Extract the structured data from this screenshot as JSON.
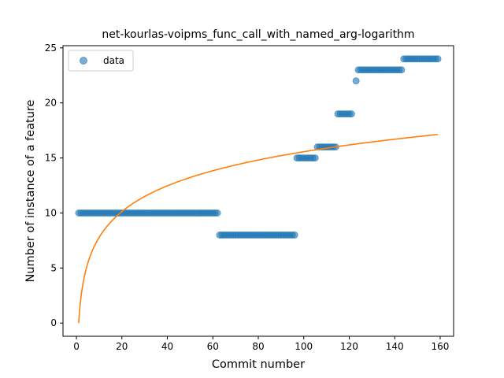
{
  "chart_data": {
    "type": "scatter",
    "title": "net-kourlas-voipms_func_call_with_named_arg-logarithm",
    "xlabel": "Commit number",
    "ylabel": "Number of instance of a feature",
    "xlim": [
      -5.9,
      165.9
    ],
    "ylim": [
      -1.2,
      25.2
    ],
    "xticks": [
      0,
      20,
      40,
      60,
      80,
      100,
      120,
      140,
      160
    ],
    "yticks": [
      0,
      5,
      10,
      15,
      20,
      25
    ],
    "legend": {
      "position": "top-left",
      "entries": [
        "data"
      ]
    },
    "colors": {
      "data": "#1f77b4",
      "fit": "#ff7f0e"
    },
    "series": [
      {
        "name": "data",
        "kind": "scatter",
        "segments": [
          {
            "x_start": 1,
            "x_end": 62,
            "y": 10
          },
          {
            "x_start": 63,
            "x_end": 96,
            "y": 8
          },
          {
            "x_start": 97,
            "x_end": 105,
            "y": 15
          },
          {
            "x_start": 106,
            "x_end": 114,
            "y": 16
          },
          {
            "x_start": 115,
            "x_end": 121,
            "y": 19
          },
          {
            "x_start": 123,
            "x_end": 123,
            "y": 22
          },
          {
            "x_start": 124,
            "x_end": 143,
            "y": 23
          },
          {
            "x_start": 144,
            "x_end": 159,
            "y": 24
          }
        ]
      },
      {
        "kind": "line",
        "model": "logarithmic",
        "a": 3.38,
        "b": 0.0,
        "x_range": [
          1,
          159
        ]
      }
    ]
  }
}
